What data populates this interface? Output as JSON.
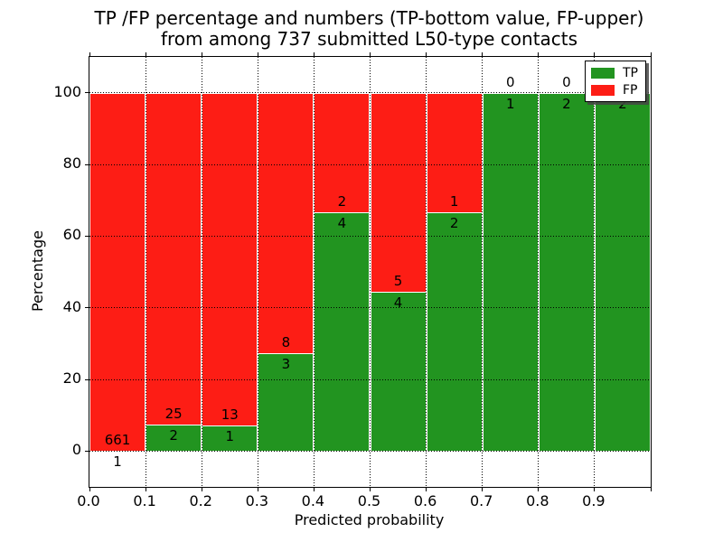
{
  "title": {
    "line1": "TP /FP percentage and numbers (TP-bottom value, FP-upper)",
    "line2": "from among 737 submitted L50-type contacts"
  },
  "chart_data": {
    "type": "bar",
    "stacked": true,
    "title": "TP /FP percentage and numbers (TP-bottom value, FP-upper) from among 737 submitted L50-type contacts",
    "xlabel": "Predicted probability",
    "ylabel": "Percentage",
    "xlim": [
      0.0,
      1.0
    ],
    "ylim": [
      -10,
      110
    ],
    "bin_width": 0.1,
    "bin_starts": [
      0.0,
      0.1,
      0.2,
      0.3,
      0.4,
      0.5,
      0.6,
      0.7,
      0.8,
      0.9
    ],
    "x_tick_labels": [
      "0.0",
      "0.1",
      "0.2",
      "0.3",
      "0.4",
      "0.5",
      "0.6",
      "0.7",
      "0.8",
      "0.9"
    ],
    "y_tick_values": [
      0,
      20,
      40,
      60,
      80,
      100
    ],
    "grid": true,
    "series": [
      {
        "name": "TP",
        "color": "#229420",
        "counts": [
          1,
          2,
          1,
          3,
          4,
          4,
          2,
          1,
          2,
          2
        ]
      },
      {
        "name": "FP",
        "color": "#fd1d15",
        "counts": [
          661,
          25,
          13,
          8,
          2,
          5,
          1,
          0,
          0,
          0
        ]
      }
    ],
    "bar_value_labels_note": "TP count below boundary, FP count above boundary",
    "legend": {
      "position": "upper-right",
      "entries": [
        {
          "label": "TP",
          "color": "#229420"
        },
        {
          "label": "FP",
          "color": "#fd1d15"
        }
      ]
    },
    "total_contacts": 737
  }
}
